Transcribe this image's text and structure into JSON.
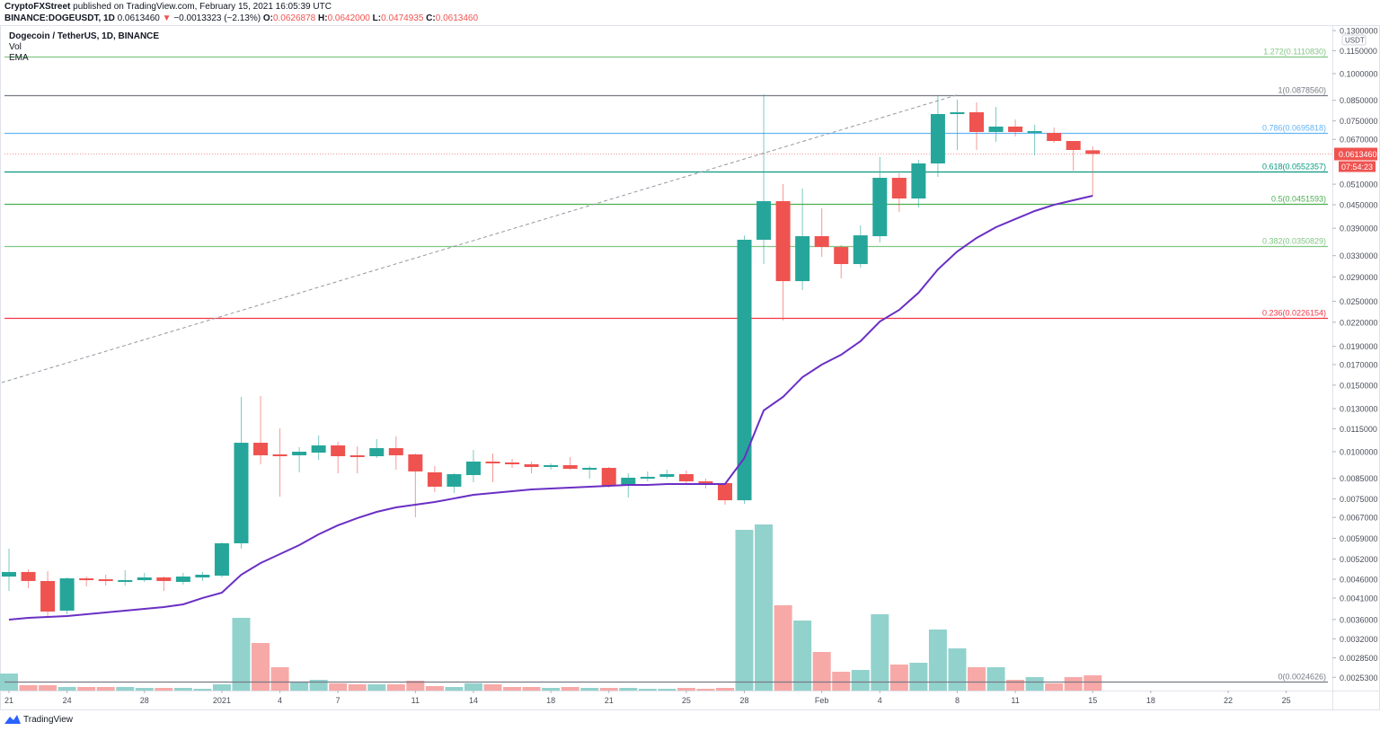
{
  "header": {
    "author": "CryptoFXStreet",
    "published_text": "published on TradingView.com, February 15, 2021 16:05:39 UTC",
    "symbol": "BINANCE:DOGEUSDT, 1D",
    "last": "0.0613460",
    "change": "−0.0013323 (−2.13%)",
    "o_label": "O:",
    "o_value": "0.0626878",
    "h_label": "H:",
    "h_value": "0.0642000",
    "l_label": "L:",
    "l_value": "0.0474935",
    "c_label": "C:",
    "c_value": "0.0613460"
  },
  "legend": {
    "title": "Dogecoin / TetherUS, 1D, BINANCE",
    "vol": "Vol",
    "ema": "EMA"
  },
  "footer": {
    "brand": "TradingView"
  },
  "colors": {
    "up": "#26a69a",
    "down": "#ef5350",
    "vol_up": "#92d2cc",
    "vol_down": "#f7a9a7",
    "ema": "#6a2fc4"
  },
  "chart_data": {
    "type": "candlestick",
    "scale": "log",
    "currency": "USDT",
    "ylim": [
      0.0024,
      0.13
    ],
    "start_date": "2020-12-21",
    "ohlc": [
      [
        0.004675,
        0.00554,
        0.004283,
        0.004806
      ],
      [
        0.004806,
        0.004886,
        0.004355,
        0.00455
      ],
      [
        0.00455,
        0.004832,
        0.003656,
        0.003778
      ],
      [
        0.003799,
        0.00465,
        0.003716,
        0.004624
      ],
      [
        0.004624,
        0.004675,
        0.004402,
        0.004574
      ],
      [
        0.004599,
        0.004727,
        0.004426,
        0.00455
      ],
      [
        0.00455,
        0.00486,
        0.004426,
        0.004574
      ],
      [
        0.004574,
        0.004779,
        0.004525,
        0.00465
      ],
      [
        0.00465,
        0.004675,
        0.004283,
        0.00455
      ],
      [
        0.004525,
        0.004779,
        0.004451,
        0.004675
      ],
      [
        0.00465,
        0.004806,
        0.00455,
        0.004727
      ],
      [
        0.004701,
        0.005756,
        0.00465,
        0.005725
      ],
      [
        0.005725,
        0.01396,
        0.00554,
        0.01056
      ],
      [
        0.01056,
        0.01404,
        0.009263,
        0.009784
      ],
      [
        0.009837,
        0.01153,
        0.007607,
        0.009784
      ],
      [
        0.009784,
        0.01028,
        0.008818,
        0.01
      ],
      [
        0.009945,
        0.01104,
        0.00952,
        0.01039
      ],
      [
        0.01039,
        0.01062,
        0.00877,
        0.00973
      ],
      [
        0.009784,
        0.01033,
        0.00877,
        0.00973
      ],
      [
        0.00973,
        0.0108,
        0.009625,
        0.01022
      ],
      [
        0.01022,
        0.01098,
        0.008964,
        0.009784
      ],
      [
        0.009837,
        0.009891,
        0.006709,
        0.008867
      ],
      [
        0.008818,
        0.009162,
        0.007819,
        0.008081
      ],
      [
        0.008081,
        0.00877,
        0.007776,
        0.008722
      ],
      [
        0.008675,
        0.01011,
        0.008304,
        0.009417
      ],
      [
        0.009417,
        0.009891,
        0.008304,
        0.009365
      ],
      [
        0.009365,
        0.009572,
        0.009063,
        0.009263
      ],
      [
        0.009263,
        0.009417,
        0.00877,
        0.009112
      ],
      [
        0.009112,
        0.009314,
        0.008964,
        0.009213
      ],
      [
        0.009213,
        0.009677,
        0.008964,
        0.009013
      ],
      [
        0.009013,
        0.009162,
        0.008488,
        0.009063
      ],
      [
        0.009063,
        0.009112,
        0.008036,
        0.008125
      ],
      [
        0.008125,
        0.00877,
        0.007565,
        0.008534
      ],
      [
        0.008488,
        0.008867,
        0.00835,
        0.008581
      ],
      [
        0.008581,
        0.008964,
        0.008488,
        0.008722
      ],
      [
        0.008722,
        0.008915,
        0.008214,
        0.00835
      ],
      [
        0.00835,
        0.008488,
        0.007993,
        0.008259
      ],
      [
        0.008259,
        0.008259,
        0.007244,
        0.007441
      ],
      [
        0.007441,
        0.03735,
        0.007281,
        0.03636
      ],
      [
        0.03636,
        0.08818,
        0.03136,
        0.04599
      ],
      [
        0.04599,
        0.05103,
        0.02222,
        0.02826
      ],
      [
        0.02826,
        0.04966,
        0.02677,
        0.03716
      ],
      [
        0.03716,
        0.04402,
        0.03276,
        0.03479
      ],
      [
        0.03479,
        0.03518,
        0.02873,
        0.03136
      ],
      [
        0.03136,
        0.03968,
        0.03068,
        0.03735
      ],
      [
        0.03716,
        0.06013,
        0.03576,
        0.05302
      ],
      [
        0.05302,
        0.05449,
        0.04306,
        0.04675
      ],
      [
        0.04675,
        0.05916,
        0.04426,
        0.05787
      ],
      [
        0.05787,
        0.08722,
        0.05331,
        0.07819
      ],
      [
        0.07819,
        0.08534,
        0.06282,
        0.07903
      ],
      [
        0.07903,
        0.08396,
        0.06282,
        0.07009
      ],
      [
        0.07009,
        0.08167,
        0.06598,
        0.07244
      ],
      [
        0.07244,
        0.07565,
        0.0682,
        0.07009
      ],
      [
        0.07009,
        0.07321,
        0.06079,
        0.07047
      ],
      [
        0.0697,
        0.07204,
        0.06562,
        0.06635
      ],
      [
        0.06635,
        0.06635,
        0.0554,
        0.06282
      ],
      [
        0.0626878,
        0.0642,
        0.0474935,
        0.061346
      ]
    ],
    "volume_relative": [
      19,
      6,
      6,
      4,
      4,
      4,
      4,
      3,
      3,
      3,
      2,
      7,
      81,
      53,
      26,
      10,
      12,
      8,
      7,
      7,
      7,
      11,
      5,
      4,
      8,
      7,
      4,
      4,
      3,
      4,
      3,
      3,
      3,
      2,
      2,
      3,
      2,
      3,
      179,
      185,
      95,
      78,
      43,
      21,
      23,
      85,
      29,
      31,
      68,
      47,
      26,
      26,
      12,
      15,
      8,
      15,
      17
    ],
    "ema": [
      0.003597,
      0.003636,
      0.003656,
      0.003676,
      0.003716,
      0.003757,
      0.003799,
      0.00384,
      0.003883,
      0.003947,
      0.004101,
      0.004238,
      0.004727,
      0.005075,
      0.005361,
      0.005662,
      0.006046,
      0.006387,
      0.006674,
      0.006932,
      0.007124,
      0.007244,
      0.007362,
      0.007522,
      0.007691,
      0.007776,
      0.007861,
      0.007948,
      0.007993,
      0.008036,
      0.008081,
      0.008125,
      0.008167,
      0.008167,
      0.008214,
      0.008214,
      0.008214,
      0.008214,
      0.009625,
      0.01286,
      0.01396,
      0.01574,
      0.017,
      0.01805,
      0.0196,
      0.0221,
      0.02372,
      0.02633,
      0.03035,
      0.03386,
      0.03676,
      0.03925,
      0.04124,
      0.04331,
      0.04498,
      0.04624,
      0.04753
    ],
    "fib_levels": [
      {
        "label": "1.272(0.1110830)",
        "value": 0.111083,
        "color": "#81c784"
      },
      {
        "label": "1(0.0878560)",
        "value": 0.087856,
        "color": "#787b86"
      },
      {
        "label": "0.786(0.0695818)",
        "value": 0.0695818,
        "color": "#64b5f6"
      },
      {
        "label": "0.618(0.0552357)",
        "value": 0.0552357,
        "color": "#089981"
      },
      {
        "label": "0.5(0.0451593)",
        "value": 0.0451593,
        "color": "#4caf50"
      },
      {
        "label": "0.382(0.0350829)",
        "value": 0.0350829,
        "color": "#81c784"
      },
      {
        "label": "0.236(0.0226154)",
        "value": 0.0226154,
        "color": "#f23645"
      },
      {
        "label": "0(0.0024626)",
        "value": 0.0024626,
        "color": "#787b86"
      }
    ],
    "trend_line": {
      "from": [
        -1,
        0.0149
      ],
      "to": [
        49,
        0.087856
      ]
    },
    "y_ticks": [
      "0.1300000",
      "0.1150000",
      "0.1000000",
      "0.0850000",
      "0.0750000",
      "0.0670000",
      "0.0510000",
      "0.0450000",
      "0.0390000",
      "0.0330000",
      "0.0290000",
      "0.0250000",
      "0.0220000",
      "0.0190000",
      "0.0170000",
      "0.0150000",
      "0.0130000",
      "0.0115000",
      "0.0100000",
      "0.0085000",
      "0.0075000",
      "0.0067000",
      "0.0059000",
      "0.0052000",
      "0.0046000",
      "0.0041000",
      "0.0036000",
      "0.0032000",
      "0.0028500",
      "0.0025300"
    ],
    "x_ticks": [
      {
        "label": "21",
        "day": 0
      },
      {
        "label": "24",
        "day": 3
      },
      {
        "label": "28",
        "day": 7
      },
      {
        "label": "2021",
        "day": 11
      },
      {
        "label": "4",
        "day": 14
      },
      {
        "label": "7",
        "day": 17
      },
      {
        "label": "11",
        "day": 21
      },
      {
        "label": "14",
        "day": 24
      },
      {
        "label": "18",
        "day": 28
      },
      {
        "label": "21",
        "day": 31
      },
      {
        "label": "25",
        "day": 35
      },
      {
        "label": "28",
        "day": 38
      },
      {
        "label": "Feb",
        "day": 42
      },
      {
        "label": "4",
        "day": 45
      },
      {
        "label": "8",
        "day": 49
      },
      {
        "label": "11",
        "day": 52
      },
      {
        "label": "15",
        "day": 56
      },
      {
        "label": "18",
        "day": 59
      },
      {
        "label": "22",
        "day": 63
      },
      {
        "label": "25",
        "day": 66
      }
    ],
    "last_price_label": "0.0613460",
    "last_price": 0.061346,
    "countdown": "07:54:23"
  }
}
